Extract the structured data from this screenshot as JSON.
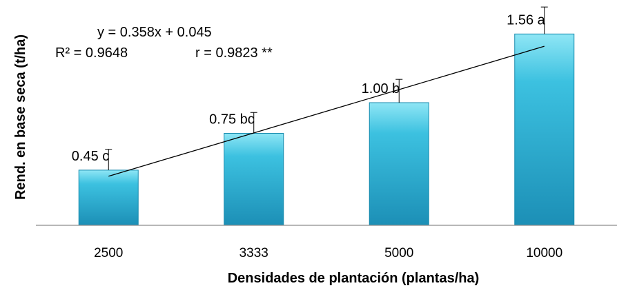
{
  "chart_data": {
    "type": "bar",
    "categories": [
      "2500",
      "3333",
      "5000",
      "10000"
    ],
    "values": [
      0.45,
      0.75,
      1.0,
      1.56
    ],
    "error_upper": [
      0.62,
      0.92,
      1.19,
      1.78
    ],
    "data_labels": [
      "0.45 c",
      "0.75 bc",
      "1.00 b",
      "1.56 a"
    ],
    "xlabel": "Densidades de plantación (plantas/ha)",
    "ylabel": "Rend. en base seca (t/ha)",
    "ylim": [
      0,
      1.8
    ],
    "grid": false,
    "trendline": {
      "start": [
        1,
        0.4
      ],
      "end": [
        4,
        1.46
      ]
    },
    "annotations": {
      "equation": "y = 0.358x + 0.045",
      "r_squared": "R² = 0.9648",
      "r": "r = 0.9823 **"
    },
    "colors": {
      "bar_top": "#8fe6f5",
      "bar_mid": "#3cc1e0",
      "bar_bottom": "#1c8fb6",
      "axis": "#8c8c8c",
      "trendline": "#000000",
      "error_bar": "#000000"
    }
  }
}
